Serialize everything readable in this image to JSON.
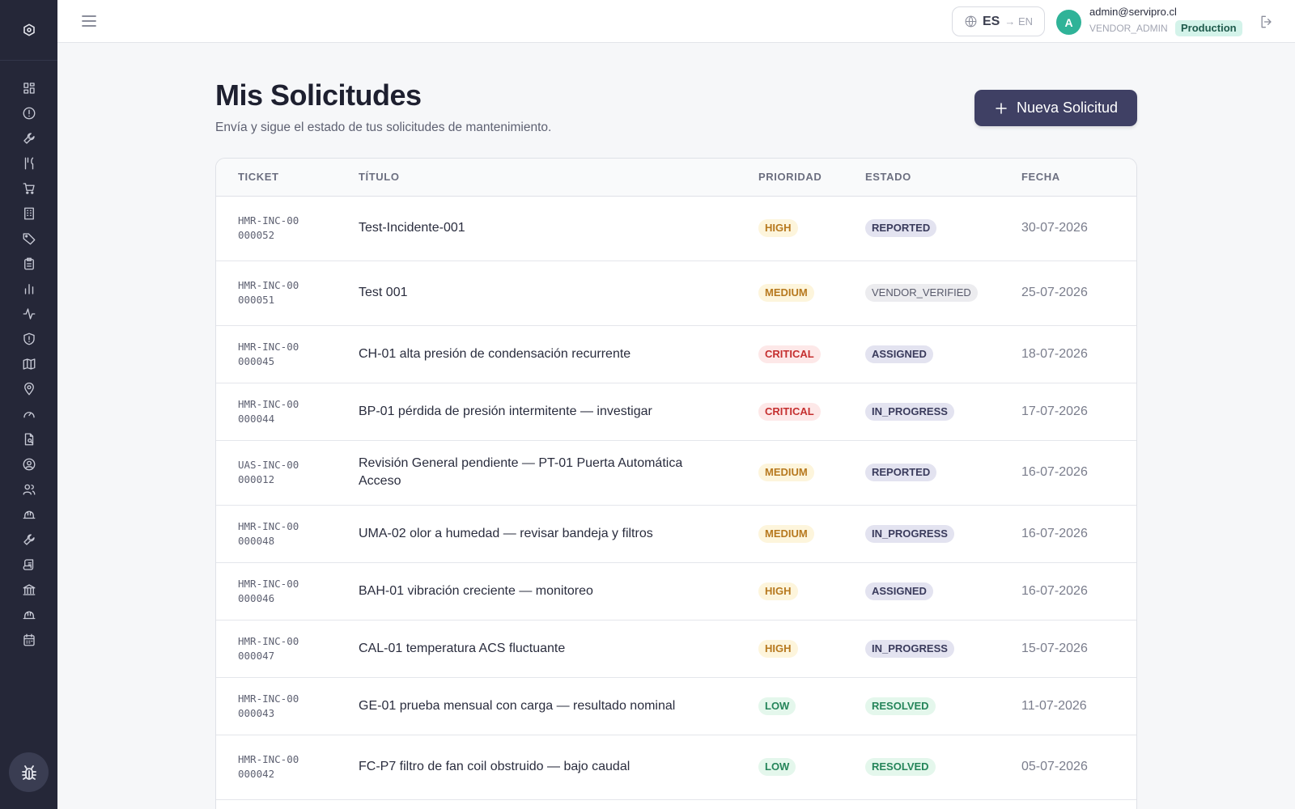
{
  "header": {
    "lang_current": "ES",
    "lang_next": "→ EN",
    "avatar_initial": "A",
    "user_email": "admin@servipro.cl",
    "user_role": "VENDOR_ADMIN",
    "env_badge": "Production"
  },
  "sidebar": {
    "icons": [
      "dashboard-icon",
      "alert-icon",
      "wrench-icon",
      "utensils-icon",
      "cart-icon",
      "building-icon",
      "tag-icon",
      "clipboard-icon",
      "bar-chart-icon",
      "activity-icon",
      "shield-icon",
      "map-icon",
      "map-pin-icon",
      "gauge-icon",
      "file-search-icon",
      "user-circle-icon",
      "users-icon",
      "hard-hat-icon",
      "wrench-icon",
      "scroll-icon",
      "landmark-icon",
      "hard-hat-icon",
      "calendar-icon"
    ]
  },
  "main": {
    "title": "Mis Solicitudes",
    "subtitle": "Envía y sigue el estado de tus solicitudes de mantenimiento.",
    "new_button_label": "Nueva Solicitud"
  },
  "table": {
    "headers": {
      "ticket": "TICKET",
      "titulo": "TÍTULO",
      "prioridad": "PRIORIDAD",
      "estado": "ESTADO",
      "fecha": "FECHA"
    },
    "rows": [
      {
        "ticket": "HMR-INC-00000052",
        "title": "Test-Incidente-001",
        "priority": "HIGH",
        "status": "REPORTED",
        "date": "30-07-2026"
      },
      {
        "ticket": "HMR-INC-00000051",
        "title": "Test 001",
        "priority": "MEDIUM",
        "status": "VENDOR_VERIFIED",
        "date": "25-07-2026"
      },
      {
        "ticket": "HMR-INC-00000045",
        "title": "CH-01 alta presión de condensación recurrente",
        "priority": "CRITICAL",
        "status": "ASSIGNED",
        "date": "18-07-2026"
      },
      {
        "ticket": "HMR-INC-00000044",
        "title": "BP-01 pérdida de presión intermitente — investigar",
        "priority": "CRITICAL",
        "status": "IN_PROGRESS",
        "date": "17-07-2026"
      },
      {
        "ticket": "UAS-INC-00000012",
        "title": "Revisión General pendiente — PT-01 Puerta Automática Acceso",
        "priority": "MEDIUM",
        "status": "REPORTED",
        "date": "16-07-2026"
      },
      {
        "ticket": "HMR-INC-00000048",
        "title": "UMA-02 olor a humedad — revisar bandeja y filtros",
        "priority": "MEDIUM",
        "status": "IN_PROGRESS",
        "date": "16-07-2026"
      },
      {
        "ticket": "HMR-INC-00000046",
        "title": "BAH-01 vibración creciente — monitoreo",
        "priority": "HIGH",
        "status": "ASSIGNED",
        "date": "16-07-2026"
      },
      {
        "ticket": "HMR-INC-00000047",
        "title": "CAL-01 temperatura ACS fluctuante",
        "priority": "HIGH",
        "status": "IN_PROGRESS",
        "date": "15-07-2026"
      },
      {
        "ticket": "HMR-INC-00000043",
        "title": "GE-01 prueba mensual con carga — resultado nominal",
        "priority": "LOW",
        "status": "RESOLVED",
        "date": "11-07-2026"
      },
      {
        "ticket": "HMR-INC-00000042",
        "title": "FC-P7 filtro de fan coil obstruido — bajo caudal",
        "priority": "LOW",
        "status": "RESOLVED",
        "date": "05-07-2026"
      }
    ]
  }
}
